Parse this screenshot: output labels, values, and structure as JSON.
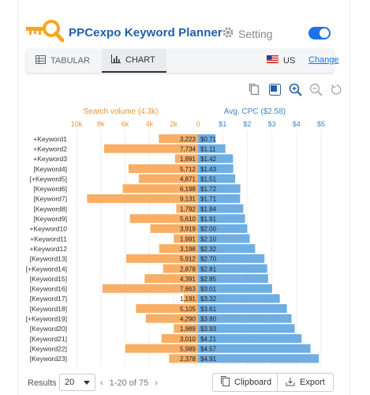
{
  "app": {
    "title": "PPCexpo Keyword Planner",
    "setting_label": "Setting",
    "toggle_on": true,
    "accent_color": "#1a73e8"
  },
  "tabs": [
    {
      "label": "TABULAR",
      "icon": "table-icon",
      "active": false
    },
    {
      "label": "CHART",
      "icon": "bar-chart-icon",
      "active": true
    }
  ],
  "country": {
    "code": "US",
    "change_label": "Change",
    "icon": "us-flag-icon"
  },
  "toolbar": [
    "copy-icon",
    "square-fill-icon",
    "zoom-in-icon",
    "zoom-out-icon",
    "reset-icon"
  ],
  "chart_data": {
    "type": "bar",
    "left_title": "Search volume (4.3k)",
    "right_title": "Avg. CPC ($2.58)",
    "left_ticks": [
      "10k",
      "8k",
      "6k",
      "4k",
      "2k",
      "0"
    ],
    "right_ticks": [
      "$1",
      "$2",
      "$3",
      "$4",
      "$5"
    ],
    "left_max": 10000,
    "right_max": 5,
    "left_color": "#f8ae65",
    "right_color": "#6eaee3",
    "categories": [
      "+Keyword1",
      "+Keyword2",
      "+Keyword3",
      "[Keyword4]",
      "[+Keyword5]",
      "[Keyword6]",
      "[Keyword7]",
      "[Keyword8]",
      "[Keyword9]",
      "+Keyword10",
      "+Keyword11",
      "+Keyword12",
      "[Keyword13]",
      "[+Keyword14]",
      "[Keyword15]",
      "[Keyword16]",
      "[Keyword17]",
      "[Keyword18]",
      "[+Keyword19]",
      "[Keyword20]",
      "[Keyword21]",
      "[Keyword22]",
      "[Keyword23]"
    ],
    "series": [
      {
        "name": "Search volume",
        "values": [
          3223,
          7734,
          1891,
          5712,
          4871,
          6198,
          9131,
          1792,
          5610,
          3919,
          1991,
          3198,
          5912,
          2878,
          4391,
          7863,
          1191,
          5105,
          4290,
          1989,
          3010,
          5989,
          2378
        ],
        "labels": [
          "3,223",
          "7,734",
          "1,891",
          "5,712",
          "4,871",
          "6,198",
          "9,131",
          "1,792",
          "5,610",
          "3,919",
          "1,991",
          "3,198",
          "5,912",
          "2,878",
          "4,391",
          "7,863",
          "1,191",
          "5,105",
          "4,290",
          "1,989",
          "3,010",
          "5,989",
          "2,378"
        ]
      },
      {
        "name": "Avg. CPC",
        "values": [
          0.71,
          1.11,
          1.42,
          1.43,
          1.51,
          1.72,
          1.71,
          1.84,
          1.91,
          2.0,
          2.1,
          2.32,
          2.7,
          2.81,
          2.85,
          3.01,
          3.32,
          3.61,
          3.8,
          3.93,
          4.21,
          4.57,
          4.91
        ],
        "labels": [
          "$0.71",
          "$1.11",
          "$1.42",
          "$1.43",
          "$1.51",
          "$1.72",
          "$1.71",
          "$1.84",
          "$1.91",
          "$2.00",
          "$2.10",
          "$2.32",
          "$2.70",
          "$2.81",
          "$2.85",
          "$3.01",
          "$3.32",
          "$3.61",
          "$3.80",
          "$3.93",
          "$4.21",
          "$4.57",
          "$4.91"
        ]
      }
    ]
  },
  "footer": {
    "results_label": "Results",
    "page_size": "20",
    "range": "1-20 of 75",
    "clipboard_label": "Clipboard",
    "export_label": "Export"
  }
}
